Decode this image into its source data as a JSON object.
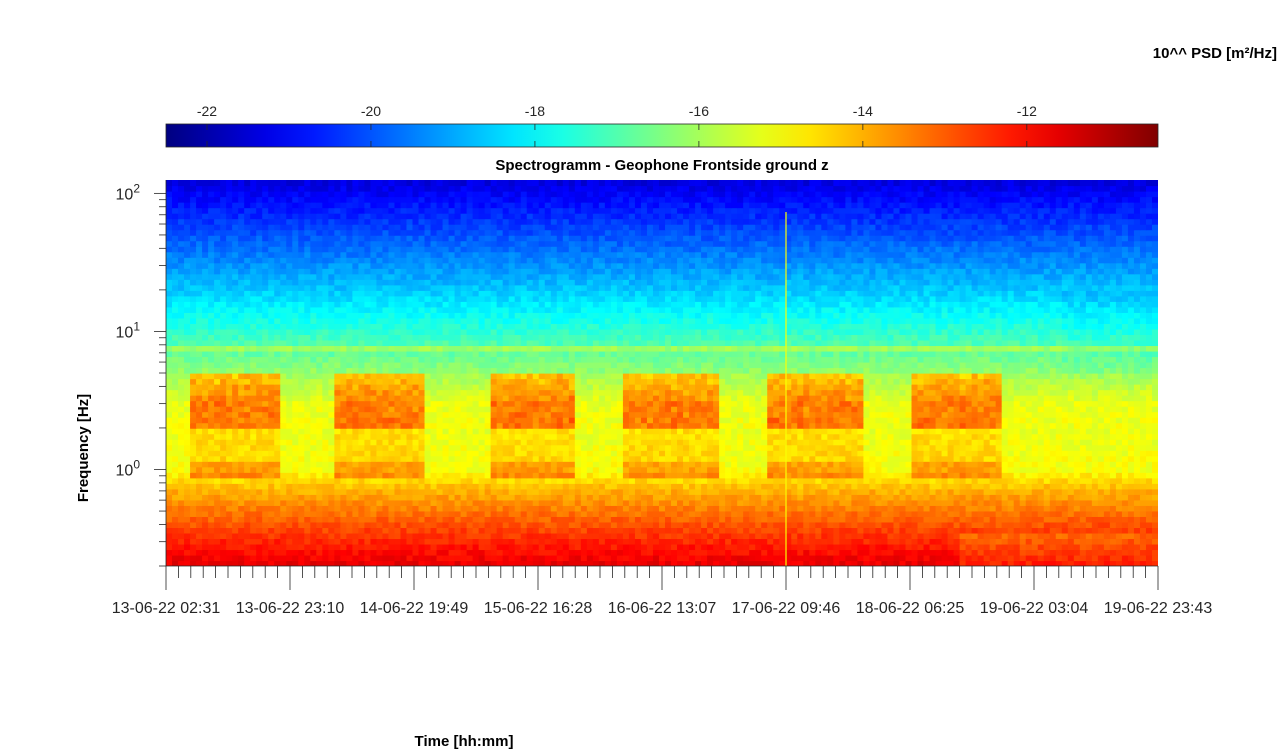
{
  "chart_data": {
    "type": "heatmap",
    "title": "Spectrogramm - Geophone Frontside ground z",
    "xlabel": "Time [hh:mm]",
    "ylabel": "Frequency [Hz]",
    "y_scale": "log",
    "ylim": [
      0.2,
      125
    ],
    "y_ticks": [
      {
        "value": 1,
        "base": "10",
        "exp": "0"
      },
      {
        "value": 10,
        "base": "10",
        "exp": "1"
      },
      {
        "value": 100,
        "base": "10",
        "exp": "2"
      }
    ],
    "x_ticks": [
      "13-06-22 02:31",
      "13-06-22 23:10",
      "14-06-22 19:49",
      "15-06-22 16:28",
      "16-06-22 13:07",
      "17-06-22 09:46",
      "18-06-22 06:25",
      "19-06-22 03:04",
      "19-06-22 23:43"
    ],
    "colorbar": {
      "label": "10^^ PSD [m²/Hz]",
      "range": [
        -22.5,
        -10.4
      ],
      "ticks": [
        "-22",
        "-20",
        "-18",
        "-16",
        "-14",
        "-12"
      ],
      "tick_values": [
        -22,
        -20,
        -18,
        -16,
        -14,
        -12
      ],
      "colormap": "jet"
    },
    "psd_profile_log10": [
      {
        "freq": 0.2,
        "value": -11.6
      },
      {
        "freq": 0.35,
        "value": -12.6
      },
      {
        "freq": 0.7,
        "value": -14.0
      },
      {
        "freq": 1.0,
        "value": -15.0
      },
      {
        "freq": 3.0,
        "value": -15.3
      },
      {
        "freq": 8.0,
        "value": -17.0
      },
      {
        "freq": 20.0,
        "value": -18.6
      },
      {
        "freq": 50.0,
        "value": -20.0
      },
      {
        "freq": 125.0,
        "value": -21.4
      }
    ],
    "activity_periods_days": [
      [
        0.15,
        0.8
      ],
      [
        1.15,
        1.8
      ],
      [
        2.25,
        2.85
      ],
      [
        3.15,
        3.85
      ],
      [
        4.15,
        4.85
      ],
      [
        5.15,
        5.8
      ]
    ]
  }
}
